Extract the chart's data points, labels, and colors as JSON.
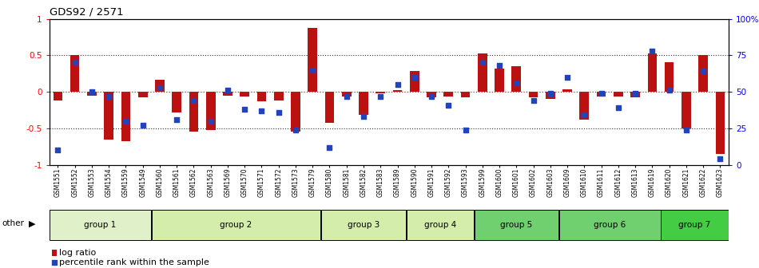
{
  "title": "GDS92 / 2571",
  "samples": [
    "GSM1551",
    "GSM1552",
    "GSM1553",
    "GSM1554",
    "GSM1559",
    "GSM1549",
    "GSM1560",
    "GSM1561",
    "GSM1562",
    "GSM1563",
    "GSM1569",
    "GSM1570",
    "GSM1571",
    "GSM1572",
    "GSM1573",
    "GSM1579",
    "GSM1580",
    "GSM1581",
    "GSM1582",
    "GSM1583",
    "GSM1589",
    "GSM1590",
    "GSM1591",
    "GSM1592",
    "GSM1593",
    "GSM1599",
    "GSM1600",
    "GSM1601",
    "GSM1602",
    "GSM1603",
    "GSM1609",
    "GSM1610",
    "GSM1611",
    "GSM1612",
    "GSM1613",
    "GSM1619",
    "GSM1620",
    "GSM1621",
    "GSM1622",
    "GSM1623"
  ],
  "log_ratio": [
    -0.12,
    0.5,
    -0.05,
    -0.65,
    -0.68,
    -0.08,
    0.16,
    -0.28,
    -0.55,
    -0.52,
    -0.05,
    -0.06,
    -0.13,
    -0.12,
    -0.55,
    0.88,
    -0.42,
    -0.07,
    -0.32,
    -0.02,
    0.02,
    0.28,
    -0.08,
    -0.06,
    -0.08,
    0.52,
    0.32,
    0.35,
    -0.08,
    -0.1,
    0.03,
    -0.38,
    -0.06,
    -0.06,
    -0.08,
    0.52,
    0.4,
    -0.5,
    0.5,
    -0.85
  ],
  "percentile": [
    10,
    70,
    50,
    47,
    30,
    27,
    53,
    31,
    44,
    30,
    51,
    38,
    37,
    36,
    24,
    65,
    12,
    47,
    33,
    47,
    55,
    60,
    47,
    41,
    24,
    70,
    68,
    56,
    44,
    49,
    60,
    34,
    49,
    39,
    49,
    78,
    51,
    24,
    64,
    4
  ],
  "groups": [
    {
      "name": "group 1",
      "start": 0,
      "end": 5,
      "color": "#e0f0c8"
    },
    {
      "name": "group 2",
      "start": 6,
      "end": 15,
      "color": "#d4edaa"
    },
    {
      "name": "group 3",
      "start": 16,
      "end": 20,
      "color": "#d4edaa"
    },
    {
      "name": "group 4",
      "start": 21,
      "end": 24,
      "color": "#d4edaa"
    },
    {
      "name": "group 5",
      "start": 25,
      "end": 29,
      "color": "#70d070"
    },
    {
      "name": "group 6",
      "start": 30,
      "end": 35,
      "color": "#70d070"
    },
    {
      "name": "group 7",
      "start": 36,
      "end": 39,
      "color": "#44cc44"
    }
  ],
  "bar_color": "#bb1111",
  "dot_color": "#2244bb",
  "ylim": [
    -1.0,
    1.0
  ],
  "yticks_left": [
    -1,
    -0.5,
    0,
    0.5,
    1
  ],
  "yticks_right": [
    0,
    25,
    50,
    75,
    100
  ],
  "hlines": [
    -0.5,
    0.0,
    0.5
  ],
  "hline_color_zero": "#cc2222",
  "hline_color_other": "#333333"
}
